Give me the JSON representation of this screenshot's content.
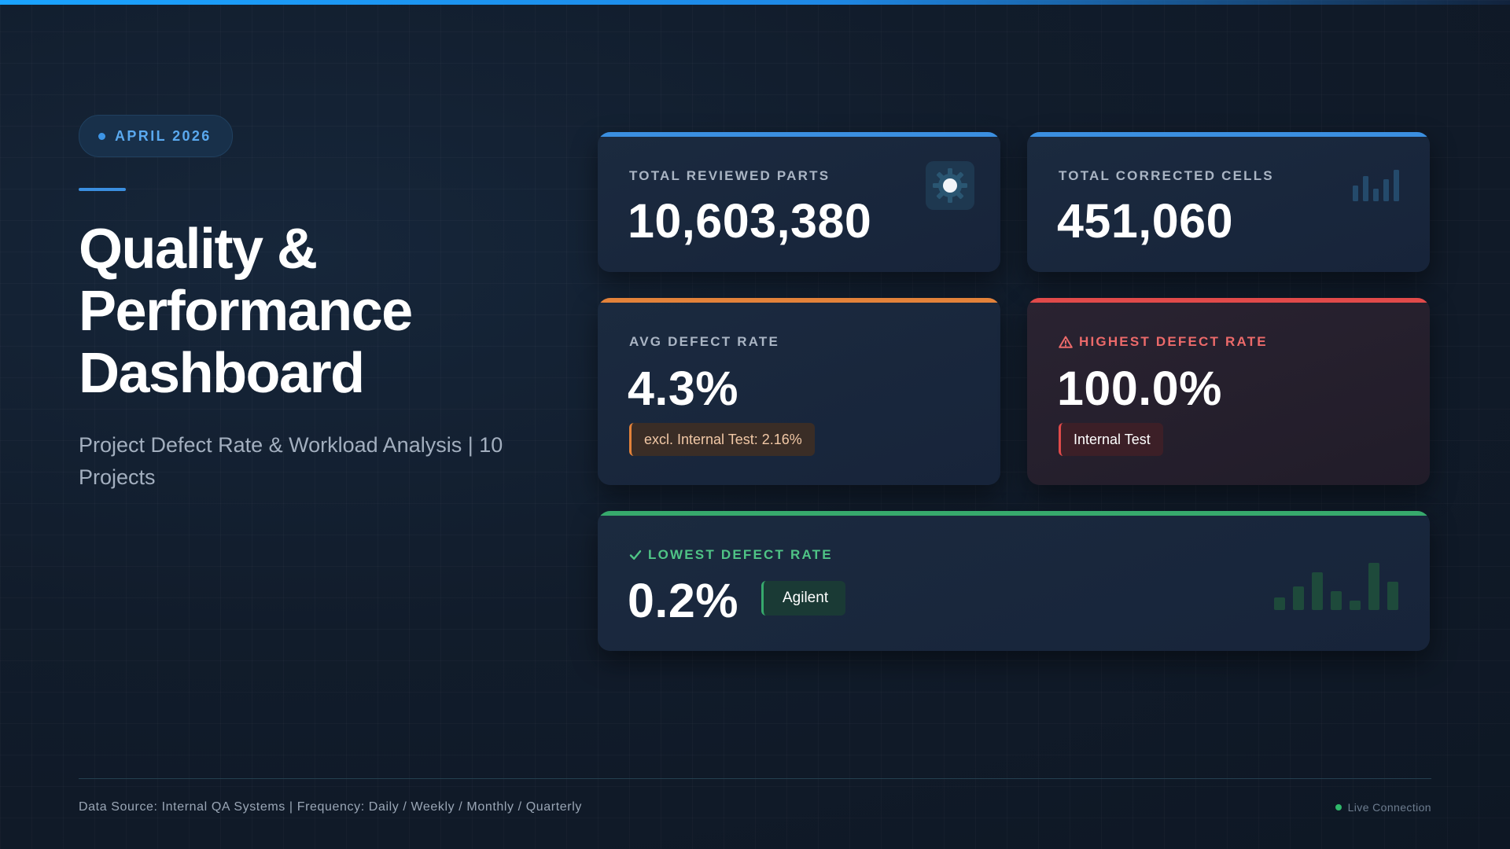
{
  "header": {
    "period": "APRIL 2026",
    "title": "Quality & Performance Dashboard",
    "subtitle": "Project Defect Rate & Workload Analysis | 10 Projects"
  },
  "cards": {
    "total_reviewed": {
      "label": "TOTAL REVIEWED PARTS",
      "value": "10,603,380",
      "icon": "gear-icon"
    },
    "total_corrected": {
      "label": "TOTAL CORRECTED CELLS",
      "value": "451,060",
      "icon": "bar-chart-icon"
    },
    "avg_defect": {
      "label": "AVG DEFECT RATE",
      "value": "4.3%",
      "note": "excl. Internal Test: 2.16%"
    },
    "highest_defect": {
      "label": "HIGHEST DEFECT RATE",
      "value": "100.0%",
      "tag": "Internal Test",
      "icon": "warning-icon"
    },
    "lowest_defect": {
      "label": "LOWEST DEFECT RATE",
      "value": "0.2%",
      "tag": "Agilent",
      "icon": "check-icon"
    }
  },
  "footer": {
    "source": "Data Source: Internal QA Systems | Frequency: Daily / Weekly / Monthly / Quarterly",
    "status": "Live Connection"
  },
  "colors": {
    "blue_accent": "#3b8fe0",
    "orange_accent": "#e3823a",
    "red_accent": "#e14a4a",
    "green_accent": "#37a96c",
    "background": "#111c2b"
  }
}
